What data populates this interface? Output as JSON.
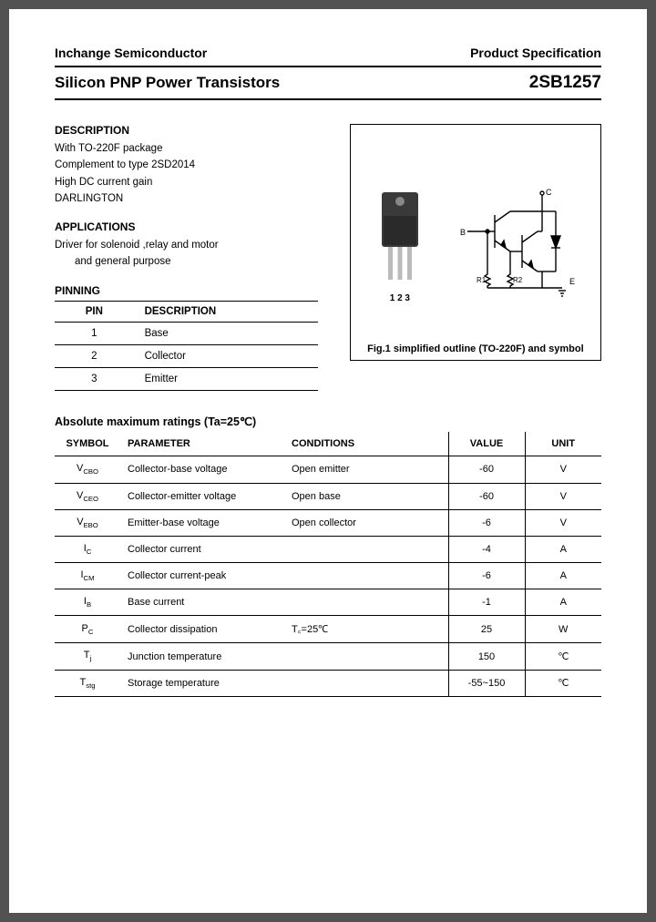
{
  "header": {
    "company": "Inchange Semiconductor",
    "doc_type": "Product Specification"
  },
  "title": {
    "left": "Silicon PNP Power Transistors",
    "right": "2SB1257"
  },
  "description": {
    "heading": "DESCRIPTION",
    "items": [
      "With TO-220F package",
      "Complement to type 2SD2014",
      "High DC current gain",
      "DARLINGTON"
    ]
  },
  "applications": {
    "heading": "APPLICATIONS",
    "line1": "Driver for solenoid ,relay and motor",
    "line2": "and general purpose"
  },
  "pinning": {
    "heading": "PINNING",
    "cols": [
      "PIN",
      "DESCRIPTION"
    ],
    "rows": [
      {
        "pin": "1",
        "desc": "Base"
      },
      {
        "pin": "2",
        "desc": "Collector"
      },
      {
        "pin": "3",
        "desc": "Emitter"
      }
    ]
  },
  "figure": {
    "pin_labels": "1 2 3",
    "schem_labels": {
      "B": "B",
      "C": "C",
      "E": "E",
      "R1": "R1",
      "R2": "R2"
    },
    "caption": "Fig.1 simplified outline (TO-220F) and symbol"
  },
  "ratings": {
    "heading": "Absolute maximum ratings (Ta=25℃)",
    "cols": [
      "SYMBOL",
      "PARAMETER",
      "CONDITIONS",
      "VALUE",
      "UNIT"
    ],
    "rows": [
      {
        "sym": "V",
        "sub": "CBO",
        "par": "Collector-base voltage",
        "cond": "Open emitter",
        "val": "-60",
        "unit": "V"
      },
      {
        "sym": "V",
        "sub": "CEO",
        "par": "Collector-emitter voltage",
        "cond": "Open base",
        "val": "-60",
        "unit": "V"
      },
      {
        "sym": "V",
        "sub": "EBO",
        "par": "Emitter-base voltage",
        "cond": "Open collector",
        "val": "-6",
        "unit": "V"
      },
      {
        "sym": "I",
        "sub": "C",
        "par": "Collector current",
        "cond": "",
        "val": "-4",
        "unit": "A"
      },
      {
        "sym": "I",
        "sub": "CM",
        "par": "Collector current-peak",
        "cond": "",
        "val": "-6",
        "unit": "A"
      },
      {
        "sym": "I",
        "sub": "B",
        "par": "Base current",
        "cond": "",
        "val": "-1",
        "unit": "A"
      },
      {
        "sym": "P",
        "sub": "C",
        "par": "Collector dissipation",
        "cond": "T꜀=25℃",
        "val": "25",
        "unit": "W"
      },
      {
        "sym": "T",
        "sub": "j",
        "par": "Junction temperature",
        "cond": "",
        "val": "150",
        "unit": "℃"
      },
      {
        "sym": "T",
        "sub": "stg",
        "par": "Storage temperature",
        "cond": "",
        "val": "-55~150",
        "unit": "℃"
      }
    ]
  }
}
